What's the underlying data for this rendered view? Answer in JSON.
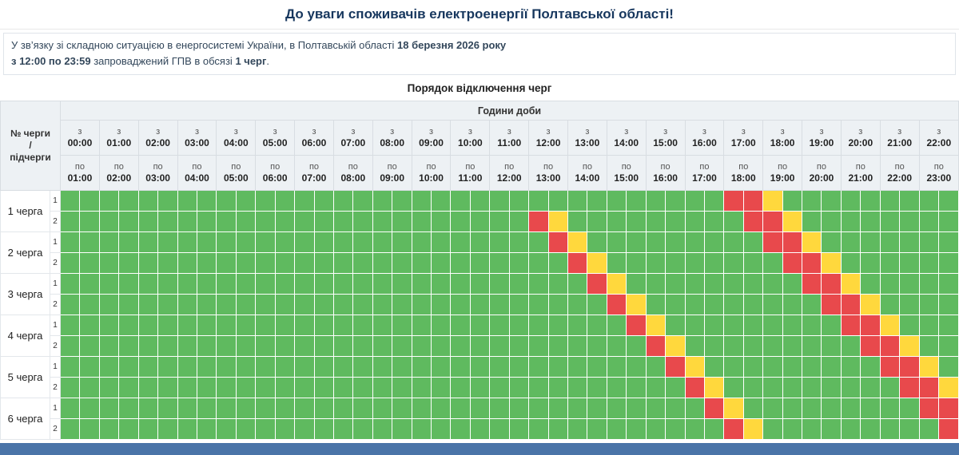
{
  "page": {
    "title": "До уваги споживачів електроенергії Полтавської області!",
    "subtitle": "Порядок відключення черг"
  },
  "notice": {
    "line1_text": "У зв’язку зі складною ситуацією в енергосистемі України, в Полтавській області ",
    "line1_bold": "18 березня 2026 року",
    "line2_bold1": "з 12:00 по 23:59",
    "line2_mid": " запроваджений ГПВ в обсязі ",
    "line2_bold2": "1 черг",
    "line2_suffix": "."
  },
  "colors": {
    "power_on": "#5fba5f",
    "outage": "#e8494c",
    "possible_outage": "#ffd83d",
    "footer_bar": "#4a74a8",
    "title_text": "#17375e",
    "header_bg": "#edf1f4"
  },
  "schedule": {
    "corner_label": "№ черги\n/\nпідчерги",
    "hours_header": "Години доби",
    "from_word": "з",
    "to_word": "по",
    "slot_minutes": 30,
    "cell_states": {
      "g": "power-on",
      "r": "outage",
      "y": "possible-outage"
    },
    "hour_columns": [
      {
        "from": "00:00",
        "to": "01:00"
      },
      {
        "from": "01:00",
        "to": "02:00"
      },
      {
        "from": "02:00",
        "to": "03:00"
      },
      {
        "from": "03:00",
        "to": "04:00"
      },
      {
        "from": "04:00",
        "to": "05:00"
      },
      {
        "from": "05:00",
        "to": "06:00"
      },
      {
        "from": "06:00",
        "to": "07:00"
      },
      {
        "from": "07:00",
        "to": "08:00"
      },
      {
        "from": "08:00",
        "to": "09:00"
      },
      {
        "from": "09:00",
        "to": "10:00"
      },
      {
        "from": "10:00",
        "to": "11:00"
      },
      {
        "from": "11:00",
        "to": "12:00"
      },
      {
        "from": "12:00",
        "to": "13:00"
      },
      {
        "from": "13:00",
        "to": "14:00"
      },
      {
        "from": "14:00",
        "to": "15:00"
      },
      {
        "from": "15:00",
        "to": "16:00"
      },
      {
        "from": "16:00",
        "to": "17:00"
      },
      {
        "from": "17:00",
        "to": "18:00"
      },
      {
        "from": "18:00",
        "to": "19:00"
      },
      {
        "from": "19:00",
        "to": "20:00"
      },
      {
        "from": "20:00",
        "to": "21:00"
      },
      {
        "from": "21:00",
        "to": "22:00"
      },
      {
        "from": "22:00",
        "to": "23:00"
      }
    ],
    "queues": [
      {
        "label": "1 черга",
        "subqueues": [
          {
            "label": "1",
            "slots": "ggggggggggggggggggggggggggggggggggrryggggggggg"
          },
          {
            "label": "2",
            "slots": "ggggggggggggggggggggggggrygggggggggrrygggggggg"
          }
        ]
      },
      {
        "label": "2 черга",
        "subqueues": [
          {
            "label": "1",
            "slots": "gggggggggggggggggggggggggrygggggggggrryggggggg"
          },
          {
            "label": "2",
            "slots": "ggggggggggggggggggggggggggrygggggggggrrygggggg"
          }
        ]
      },
      {
        "label": "3 черга",
        "subqueues": [
          {
            "label": "1",
            "slots": "gggggggggggggggggggggggggggrygggggggggrryggggg"
          },
          {
            "label": "2",
            "slots": "ggggggggggggggggggggggggggggrygggggggggrrygggg"
          }
        ]
      },
      {
        "label": "4 черга",
        "subqueues": [
          {
            "label": "1",
            "slots": "gggggggggggggggggggggggggggggrygggggggggrryggg"
          },
          {
            "label": "2",
            "slots": "ggggggggggggggggggggggggggggggrygggggggggrrygg"
          }
        ]
      },
      {
        "label": "5 черга",
        "subqueues": [
          {
            "label": "1",
            "slots": "gggggggggggggggggggggggggggggggrygggggggggrryg"
          },
          {
            "label": "2",
            "slots": "ggggggggggggggggggggggggggggggggrygggggggggrry"
          }
        ]
      },
      {
        "label": "6 черга",
        "subqueues": [
          {
            "label": "1",
            "slots": "gggggggggggggggggggggggggggggggggrygggggggggrr"
          },
          {
            "label": "2",
            "slots": "ggggggggggggggggggggggggggggggggggrygggggggggr"
          }
        ]
      }
    ]
  }
}
